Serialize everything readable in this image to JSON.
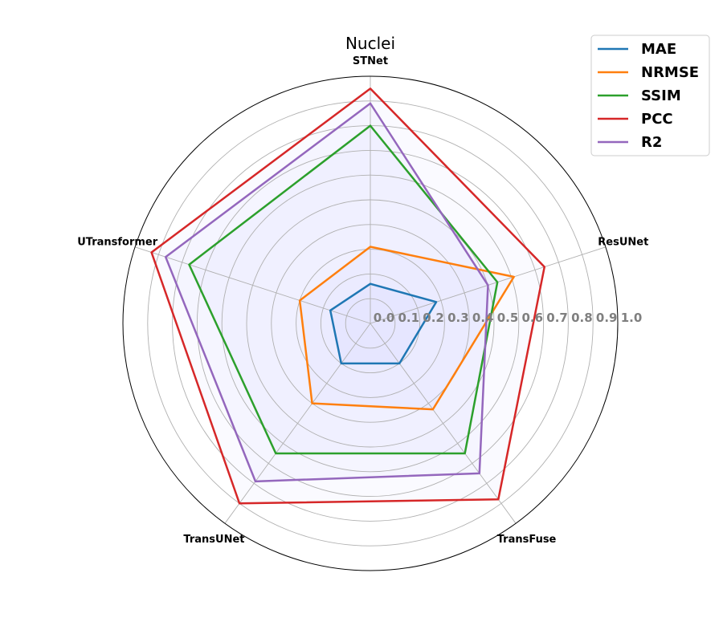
{
  "chart_data": {
    "type": "radar",
    "title": "Nuclei",
    "categories": [
      "STNet",
      "ResUNet",
      "TransFuse",
      "TransUNet",
      "UTransformer"
    ],
    "rlim": [
      0,
      1.0
    ],
    "rticks": [
      "0.0",
      "0.1",
      "0.2",
      "0.3",
      "0.4",
      "0.5",
      "0.6",
      "0.7",
      "0.8",
      "0.9",
      "1.0"
    ],
    "grid": true,
    "legend_position": "top-right",
    "series": [
      {
        "name": "MAE",
        "color": "#1f77b4",
        "values": [
          0.16,
          0.28,
          0.2,
          0.2,
          0.17
        ]
      },
      {
        "name": "NRMSE",
        "color": "#ff7f0e",
        "values": [
          0.31,
          0.61,
          0.43,
          0.4,
          0.3
        ]
      },
      {
        "name": "SSIM",
        "color": "#2ca02c",
        "values": [
          0.8,
          0.54,
          0.65,
          0.65,
          0.77
        ]
      },
      {
        "name": "PCC",
        "color": "#d62728",
        "values": [
          0.95,
          0.74,
          0.88,
          0.9,
          0.93
        ]
      },
      {
        "name": "R2",
        "color": "#9467bd",
        "values": [
          0.89,
          0.5,
          0.75,
          0.79,
          0.87
        ]
      }
    ]
  }
}
